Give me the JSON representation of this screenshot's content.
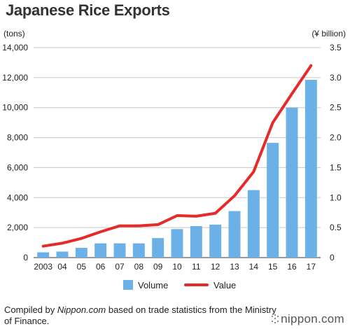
{
  "title": "Japanese Rice Exports",
  "footer": {
    "prefix": "Compiled by ",
    "site": "Nippon.com",
    "suffix": " based on trade statistics from the Ministry of Finance."
  },
  "logo": "nippon.com",
  "chart_data": {
    "type": "bar+line",
    "categories": [
      "2003",
      "04",
      "05",
      "06",
      "07",
      "08",
      "09",
      "10",
      "11",
      "12",
      "13",
      "14",
      "15",
      "16",
      "17"
    ],
    "left_axis": {
      "label": "(tons)",
      "ylim": [
        0,
        14000
      ],
      "ticks": [
        "0",
        "2,000",
        "4,000",
        "6,000",
        "8,000",
        "10,000",
        "12,000",
        "14,000"
      ]
    },
    "right_axis": {
      "label": "(¥ billion)",
      "ylim": [
        0,
        3.5
      ],
      "ticks": [
        "0",
        "0.5",
        "1.0",
        "1.5",
        "2.0",
        "2.5",
        "3.0",
        "3.5"
      ]
    },
    "series": [
      {
        "name": "Volume",
        "type": "bar",
        "axis": "left",
        "color": "#6bb0e6",
        "values": [
          350,
          400,
          650,
          950,
          950,
          950,
          1300,
          1900,
          2100,
          2200,
          3100,
          4500,
          7650,
          10000,
          11850
        ]
      },
      {
        "name": "Value",
        "type": "line",
        "axis": "right",
        "color": "#e62a2a",
        "values": [
          0.19,
          0.24,
          0.32,
          0.43,
          0.53,
          0.53,
          0.55,
          0.7,
          0.69,
          0.74,
          1.03,
          1.43,
          2.25,
          2.73,
          3.2
        ]
      }
    ],
    "grid": "horizontal",
    "legend": "bottom-center"
  }
}
